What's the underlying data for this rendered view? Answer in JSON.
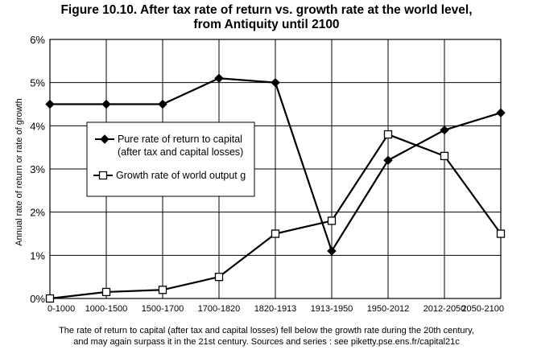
{
  "chart_data": {
    "type": "line",
    "title": "Figure 10.10. After tax rate of return vs. growth rate at the world level,",
    "subtitle": "from Antiquity until 2100",
    "ylabel": "Annual rate of return or rate of growth",
    "xlabel": "",
    "categories": [
      "0-1000",
      "1000-1500",
      "1500-1700",
      "1700-1820",
      "1820-1913",
      "1913-1950",
      "1950-2012",
      "2012-2050",
      "2050-2100"
    ],
    "ylim": [
      0,
      0.06
    ],
    "yticks": [
      {
        "value": 0,
        "label": "0%"
      },
      {
        "value": 0.01,
        "label": "1%"
      },
      {
        "value": 0.02,
        "label": "2%"
      },
      {
        "value": 0.03,
        "label": "3%"
      },
      {
        "value": 0.04,
        "label": "4%"
      },
      {
        "value": 0.05,
        "label": "5%"
      },
      {
        "value": 0.06,
        "label": "6%"
      }
    ],
    "grid": true,
    "legend_position": "center-left",
    "series": [
      {
        "name": "Pure rate of return to capital (after tax and capital losses)",
        "legend_lines": [
          "Pure rate of return to capital",
          "(after tax and capital losses)"
        ],
        "marker": "filled-diamond",
        "color": "#000000",
        "values": [
          0.045,
          0.045,
          0.045,
          0.051,
          0.05,
          0.011,
          0.032,
          0.039,
          0.043
        ]
      },
      {
        "name": "Growth rate of world output g",
        "legend_lines": [
          "Growth rate of world output g"
        ],
        "marker": "open-square",
        "color": "#000000",
        "values": [
          0.0,
          0.0015,
          0.002,
          0.005,
          0.015,
          0.018,
          0.038,
          0.033,
          0.015
        ]
      }
    ]
  },
  "footnote": {
    "line1": "The rate of return to capital (after tax and capital losses) fell below the growth rate during the 20th century,",
    "line2": "and may again surpass it in the 21st century. Sources and series : see piketty.pse.ens.fr/capital21c"
  }
}
